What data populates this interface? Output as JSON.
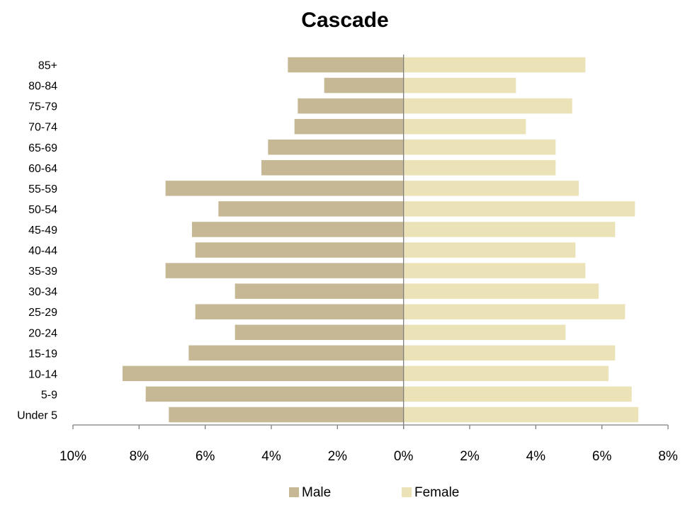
{
  "chart_data": {
    "type": "bar",
    "orientation": "horizontal",
    "title": "Cascade",
    "xlabel": "",
    "ylabel": "",
    "categories": [
      "Under 5",
      "5-9",
      "10-14",
      "15-19",
      "20-24",
      "25-29",
      "30-34",
      "35-39",
      "40-44",
      "45-49",
      "50-54",
      "55-59",
      "60-64",
      "65-69",
      "70-74",
      "75-79",
      "80-84",
      "85+"
    ],
    "series": [
      {
        "name": "Male",
        "color": "#c6b894",
        "values": [
          7.1,
          7.8,
          8.5,
          6.5,
          5.1,
          6.3,
          5.1,
          7.2,
          6.3,
          6.4,
          5.6,
          7.2,
          4.3,
          4.1,
          3.3,
          3.2,
          2.4,
          3.5
        ]
      },
      {
        "name": "Female",
        "color": "#ebe3b7",
        "values": [
          7.1,
          6.9,
          6.2,
          6.4,
          4.9,
          6.7,
          5.9,
          5.5,
          5.2,
          6.4,
          7.0,
          5.3,
          4.6,
          4.6,
          3.7,
          5.1,
          3.4,
          5.5
        ]
      }
    ],
    "xlim": [
      -10,
      8
    ],
    "xticks": [
      -10,
      -8,
      -6,
      -4,
      -2,
      0,
      2,
      4,
      6,
      8
    ],
    "xtick_labels": [
      "10%",
      "8%",
      "6%",
      "4%",
      "2%",
      "0%",
      "2%",
      "4%",
      "6%",
      "8%"
    ],
    "legend_position": "bottom",
    "grid": false
  }
}
